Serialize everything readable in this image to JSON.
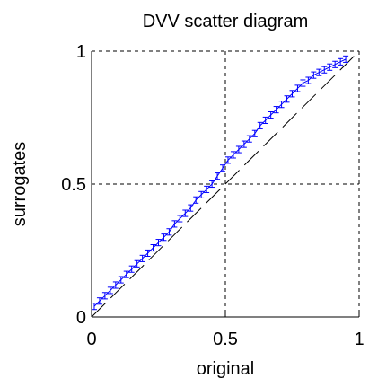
{
  "chart_data": {
    "type": "scatter",
    "title": "DVV scatter diagram",
    "xlabel": "original",
    "ylabel": "surrogates",
    "xlim": [
      0,
      1
    ],
    "ylim": [
      0,
      1
    ],
    "grid": "dashed at 0.5",
    "xticks": [
      "0",
      "0.5",
      "1"
    ],
    "yticks": [
      "0",
      "0.5",
      "1"
    ],
    "reference_line": {
      "from": [
        0,
        0
      ],
      "to": [
        1,
        1
      ],
      "style": "dashed"
    },
    "series": [
      {
        "style": "errorbar",
        "x": [
          0.01,
          0.03,
          0.05,
          0.07,
          0.09,
          0.11,
          0.13,
          0.15,
          0.17,
          0.19,
          0.21,
          0.23,
          0.25,
          0.27,
          0.29,
          0.31,
          0.33,
          0.35,
          0.37,
          0.39,
          0.41,
          0.43,
          0.45,
          0.47,
          0.49,
          0.51,
          0.53,
          0.55,
          0.57,
          0.59,
          0.61,
          0.63,
          0.65,
          0.67,
          0.69,
          0.71,
          0.73,
          0.75,
          0.77,
          0.79,
          0.81,
          0.83,
          0.85,
          0.87,
          0.89,
          0.91,
          0.93,
          0.95
        ],
        "y": [
          0.04,
          0.06,
          0.08,
          0.1,
          0.12,
          0.14,
          0.16,
          0.18,
          0.2,
          0.22,
          0.24,
          0.26,
          0.28,
          0.3,
          0.32,
          0.35,
          0.37,
          0.39,
          0.41,
          0.44,
          0.46,
          0.48,
          0.5,
          0.53,
          0.56,
          0.59,
          0.61,
          0.63,
          0.65,
          0.67,
          0.69,
          0.72,
          0.74,
          0.76,
          0.78,
          0.8,
          0.82,
          0.84,
          0.86,
          0.88,
          0.89,
          0.91,
          0.92,
          0.93,
          0.94,
          0.95,
          0.96,
          0.97
        ],
        "err": [
          0.012,
          0.012,
          0.012,
          0.012,
          0.012,
          0.012,
          0.012,
          0.012,
          0.012,
          0.012,
          0.012,
          0.012,
          0.012,
          0.012,
          0.012,
          0.012,
          0.012,
          0.012,
          0.012,
          0.012,
          0.012,
          0.012,
          0.012,
          0.012,
          0.012,
          0.012,
          0.012,
          0.012,
          0.012,
          0.012,
          0.012,
          0.012,
          0.012,
          0.012,
          0.012,
          0.012,
          0.012,
          0.012,
          0.012,
          0.012,
          0.012,
          0.012,
          0.012,
          0.012,
          0.012,
          0.012,
          0.012,
          0.012
        ]
      }
    ],
    "colors": {
      "series": "#0000ff",
      "axes": "#000000",
      "grid": "#000000"
    }
  }
}
